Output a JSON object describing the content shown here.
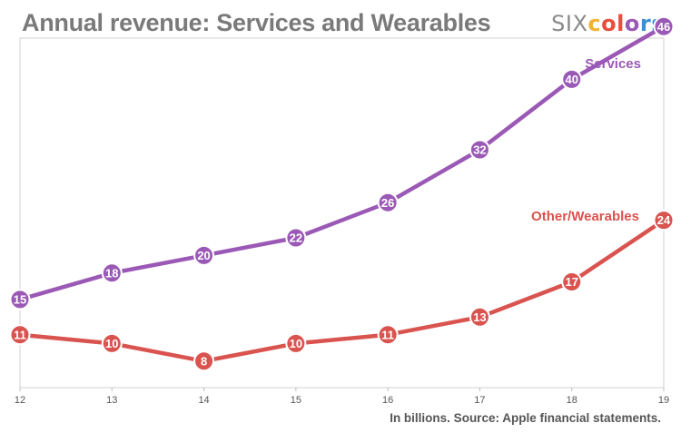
{
  "header": {
    "title": "Annual revenue: Services and Wearables"
  },
  "logo": {
    "prefix": "SIX",
    "letters": [
      "c",
      "o",
      "l",
      "o",
      "r",
      "s"
    ],
    "letter_colors": [
      "#f2b233",
      "#e94e3c",
      "#e94e3c",
      "#9b59b6",
      "#3a8fd6",
      "#3a8fd6"
    ]
  },
  "footer": {
    "source": "In billions. Source: Apple financial statements."
  },
  "chart_data": {
    "type": "line",
    "title": "Annual revenue: Services and Wearables",
    "xlabel": "",
    "ylabel": "",
    "x": [
      "12",
      "13",
      "14",
      "15",
      "16",
      "17",
      "18",
      "19"
    ],
    "ylim": [
      0,
      50
    ],
    "grid": false,
    "series": [
      {
        "name": "Services",
        "color": "#9b59b6",
        "values": [
          15,
          18,
          20,
          22,
          26,
          32,
          40,
          46
        ]
      },
      {
        "name": "Other/Wearables",
        "color": "#d9534f",
        "values": [
          11,
          10,
          8,
          10,
          11,
          13,
          17,
          24
        ]
      }
    ]
  }
}
